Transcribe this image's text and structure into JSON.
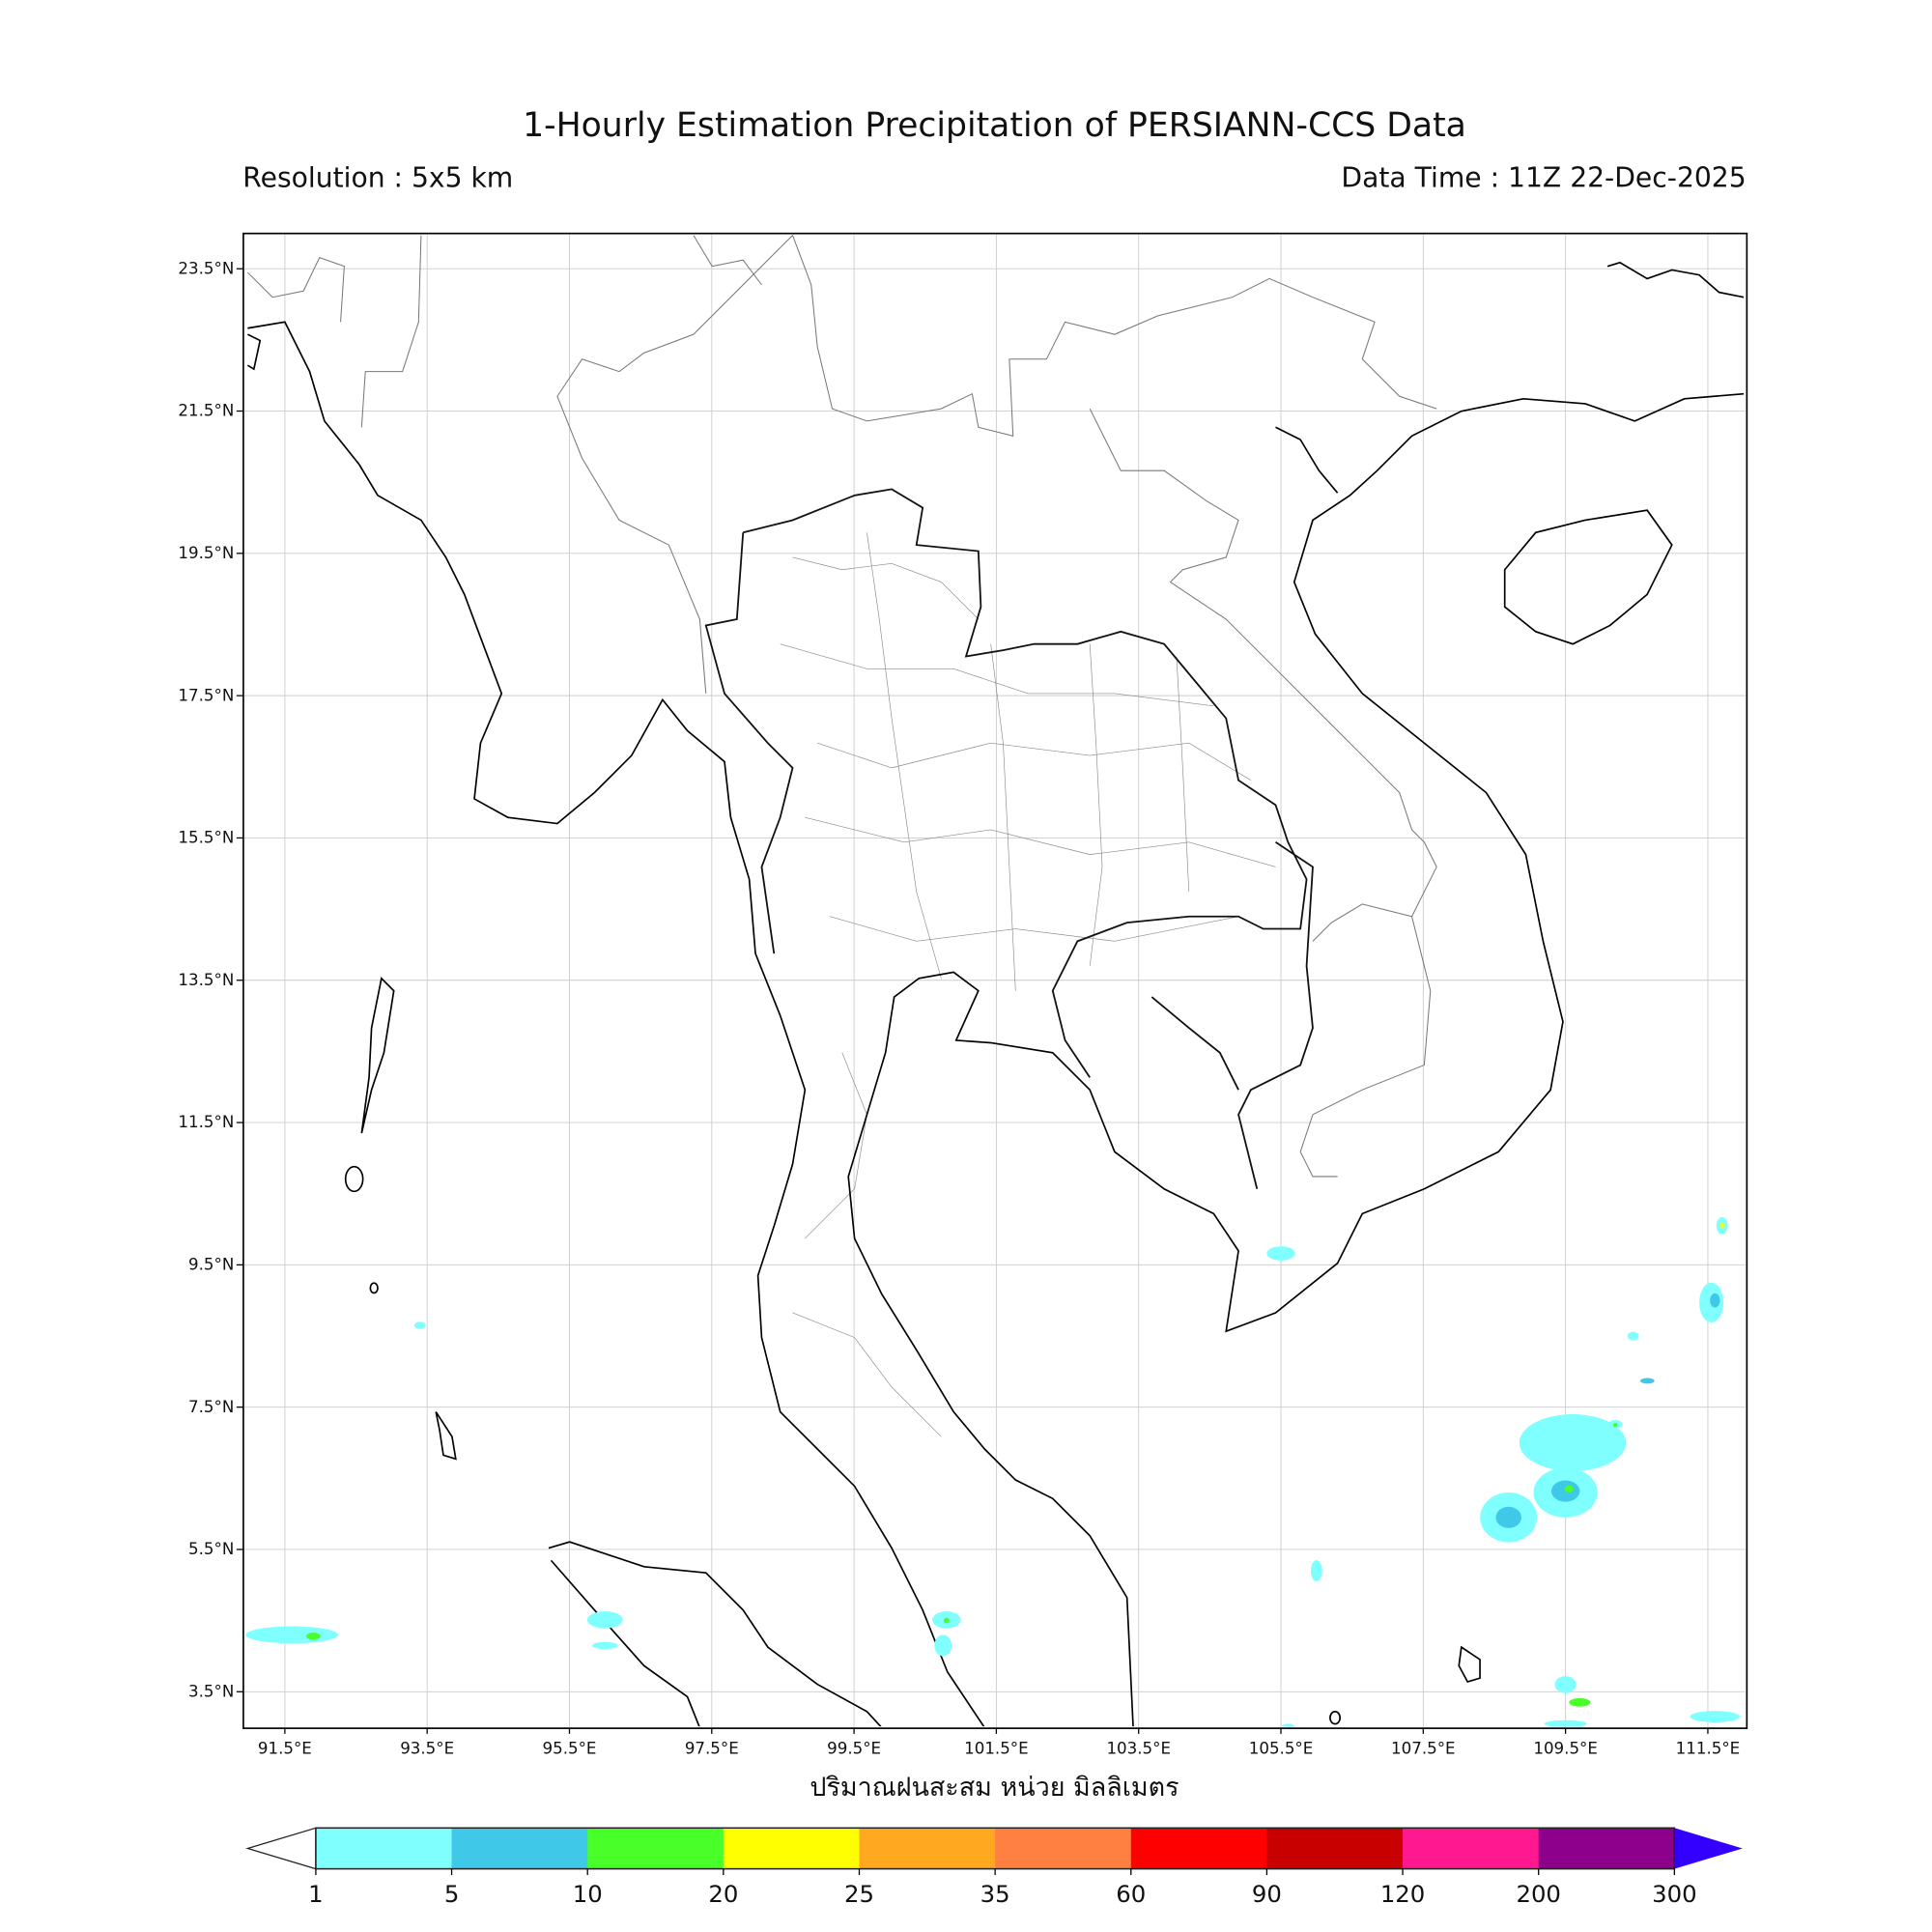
{
  "title": "1-Hourly Estimation Precipitation of PERSIANN-CCS Data",
  "resolution": "Resolution : 5x5 km",
  "data_time": "Data Time : 11Z 22-Dec-2025",
  "colorbar_label": "ปริมาณฝนสะสม หน่วย มิลลิเมตร",
  "map": {
    "lon_range": [
      90.9,
      112.05
    ],
    "lat_range": [
      3.0,
      24.0
    ],
    "gridlines": true,
    "lon_ticks": [
      "91.5°E",
      "93.5°E",
      "95.5°E",
      "97.5°E",
      "99.5°E",
      "101.5°E",
      "103.5°E",
      "105.5°E",
      "107.5°E",
      "109.5°E",
      "111.5°E"
    ],
    "lon_values": [
      91.5,
      93.5,
      95.5,
      97.5,
      99.5,
      101.5,
      103.5,
      105.5,
      107.5,
      109.5,
      111.5
    ],
    "lat_ticks": [
      "23.5°N",
      "21.5°N",
      "19.5°N",
      "17.5°N",
      "15.5°N",
      "13.5°N",
      "11.5°N",
      "9.5°N",
      "7.5°N",
      "5.5°N",
      "3.5°N"
    ],
    "lat_values": [
      23.5,
      21.5,
      19.5,
      17.5,
      15.5,
      13.5,
      11.5,
      9.5,
      7.5,
      5.5,
      3.5
    ]
  },
  "colorbar": {
    "levels": [
      "1",
      "5",
      "10",
      "20",
      "25",
      "35",
      "60",
      "90",
      "120",
      "200",
      "300"
    ],
    "colors": [
      "#80ffff",
      "#40c8e8",
      "#48ff2a",
      "#ffff00",
      "#ffa820",
      "#ff8040",
      "#ff0000",
      "#c80000",
      "#ff1890",
      "#8c008c"
    ],
    "under_color": "#ffffff",
    "over_color": "#3300ff"
  },
  "precipitation_cells": [
    {
      "lon": 109.6,
      "lat": 7.0,
      "rlon": 0.75,
      "rlat": 0.4,
      "level": 0
    },
    {
      "lon": 109.5,
      "lat": 6.3,
      "rlon": 0.45,
      "rlat": 0.35,
      "level": 0
    },
    {
      "lon": 109.5,
      "lat": 6.32,
      "rlon": 0.2,
      "rlat": 0.15,
      "level": 1
    },
    {
      "lon": 109.55,
      "lat": 6.35,
      "rlon": 0.06,
      "rlat": 0.05,
      "level": 2
    },
    {
      "lon": 108.7,
      "lat": 5.95,
      "rlon": 0.4,
      "rlat": 0.35,
      "level": 0
    },
    {
      "lon": 108.7,
      "lat": 5.95,
      "rlon": 0.18,
      "rlat": 0.15,
      "level": 1
    },
    {
      "lon": 111.55,
      "lat": 8.97,
      "rlon": 0.17,
      "rlat": 0.28,
      "level": 0
    },
    {
      "lon": 111.6,
      "lat": 9.0,
      "rlon": 0.07,
      "rlat": 0.1,
      "level": 1
    },
    {
      "lon": 111.7,
      "lat": 10.05,
      "rlon": 0.08,
      "rlat": 0.12,
      "level": 0
    },
    {
      "lon": 111.7,
      "lat": 10.05,
      "rlon": 0.03,
      "rlat": 0.04,
      "level": 3
    },
    {
      "lon": 105.5,
      "lat": 9.66,
      "rlon": 0.2,
      "rlat": 0.1,
      "level": 0
    },
    {
      "lon": 100.8,
      "lat": 4.51,
      "rlon": 0.2,
      "rlat": 0.12,
      "level": 0
    },
    {
      "lon": 100.75,
      "lat": 4.15,
      "rlon": 0.12,
      "rlat": 0.15,
      "level": 0
    },
    {
      "lon": 100.8,
      "lat": 4.5,
      "rlon": 0.04,
      "rlat": 0.04,
      "level": 2
    },
    {
      "lon": 96.0,
      "lat": 4.51,
      "rlon": 0.25,
      "rlat": 0.12,
      "level": 0
    },
    {
      "lon": 96.0,
      "lat": 4.15,
      "rlon": 0.18,
      "rlat": 0.05,
      "level": 0
    },
    {
      "lon": 91.6,
      "lat": 4.3,
      "rlon": 0.65,
      "rlat": 0.12,
      "level": 0
    },
    {
      "lon": 91.9,
      "lat": 4.28,
      "rlon": 0.1,
      "rlat": 0.05,
      "level": 2
    },
    {
      "lon": 109.5,
      "lat": 3.6,
      "rlon": 0.15,
      "rlat": 0.12,
      "level": 0
    },
    {
      "lon": 109.7,
      "lat": 3.35,
      "rlon": 0.15,
      "rlat": 0.06,
      "level": 2
    },
    {
      "lon": 111.6,
      "lat": 3.15,
      "rlon": 0.35,
      "rlat": 0.08,
      "level": 0
    },
    {
      "lon": 110.65,
      "lat": 7.87,
      "rlon": 0.1,
      "rlat": 0.04,
      "level": 1
    },
    {
      "lon": 110.2,
      "lat": 7.26,
      "rlon": 0.1,
      "rlat": 0.06,
      "level": 0
    },
    {
      "lon": 110.2,
      "lat": 7.25,
      "rlon": 0.03,
      "rlat": 0.03,
      "level": 2
    },
    {
      "lon": 110.45,
      "lat": 8.5,
      "rlon": 0.08,
      "rlat": 0.06,
      "level": 0
    },
    {
      "lon": 93.4,
      "lat": 8.65,
      "rlon": 0.08,
      "rlat": 0.05,
      "level": 0
    },
    {
      "lon": 106.0,
      "lat": 5.2,
      "rlon": 0.08,
      "rlat": 0.15,
      "level": 0
    },
    {
      "lon": 105.6,
      "lat": 3.0,
      "rlon": 0.1,
      "rlat": 0.05,
      "level": 0
    },
    {
      "lon": 109.5,
      "lat": 3.05,
      "rlon": 0.3,
      "rlat": 0.05,
      "level": 0
    }
  ]
}
